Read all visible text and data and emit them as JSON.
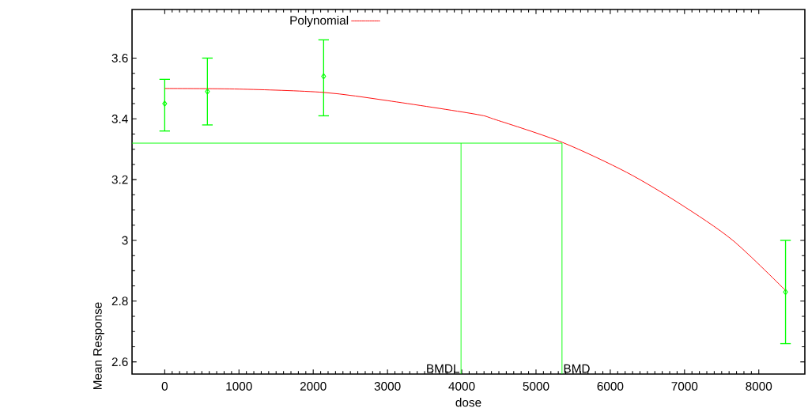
{
  "chart_data": {
    "type": "scatter",
    "xlabel": "dose",
    "ylabel": "Mean Response",
    "xlim": [
      -440,
      8620
    ],
    "ylim": [
      2.56,
      3.76
    ],
    "xticks": [
      0,
      1000,
      2000,
      3000,
      4000,
      5000,
      6000,
      7000,
      8000
    ],
    "yticks": [
      2.6,
      2.8,
      {
        "value": 3,
        "label": "3"
      },
      3.2,
      3.4,
      3.6
    ],
    "legend": "top",
    "grid": false,
    "series": [
      {
        "color": "#00ff00",
        "marker": "diamond",
        "x": [
          0,
          575,
          2140,
          8360
        ],
        "values": [
          3.45,
          3.49,
          3.54,
          2.83
        ],
        "errors": [
          [
            3.36,
            3.53
          ],
          [
            3.38,
            3.6
          ],
          [
            3.41,
            3.66
          ],
          [
            2.66,
            3.0
          ]
        ]
      },
      {
        "type": "line",
        "name": "Polynomial",
        "color": "#ff0000",
        "x": [
          0,
          1000,
          2140,
          3000,
          4170,
          4460,
          5360,
          6220,
          6940,
          7650,
          8360
        ],
        "values": [
          3.5,
          3.498,
          3.487,
          3.46,
          3.416,
          3.397,
          3.322,
          3.224,
          3.12,
          3.0,
          2.835
        ]
      },
      {
        "type": "line",
        "color": "#00ff00",
        "x": [
          -440,
          5350,
          5350
        ],
        "values": [
          3.32,
          3.32,
          2.56
        ]
      },
      {
        "type": "line",
        "color": "#00ff00",
        "x": [
          3990,
          3990
        ],
        "values": [
          3.32,
          2.56
        ]
      }
    ],
    "annotations": [
      {
        "text": "BMDL",
        "x": 3990,
        "y": 2.56
      },
      {
        "text": "BMD",
        "x": 5350,
        "y": 2.56
      }
    ]
  }
}
